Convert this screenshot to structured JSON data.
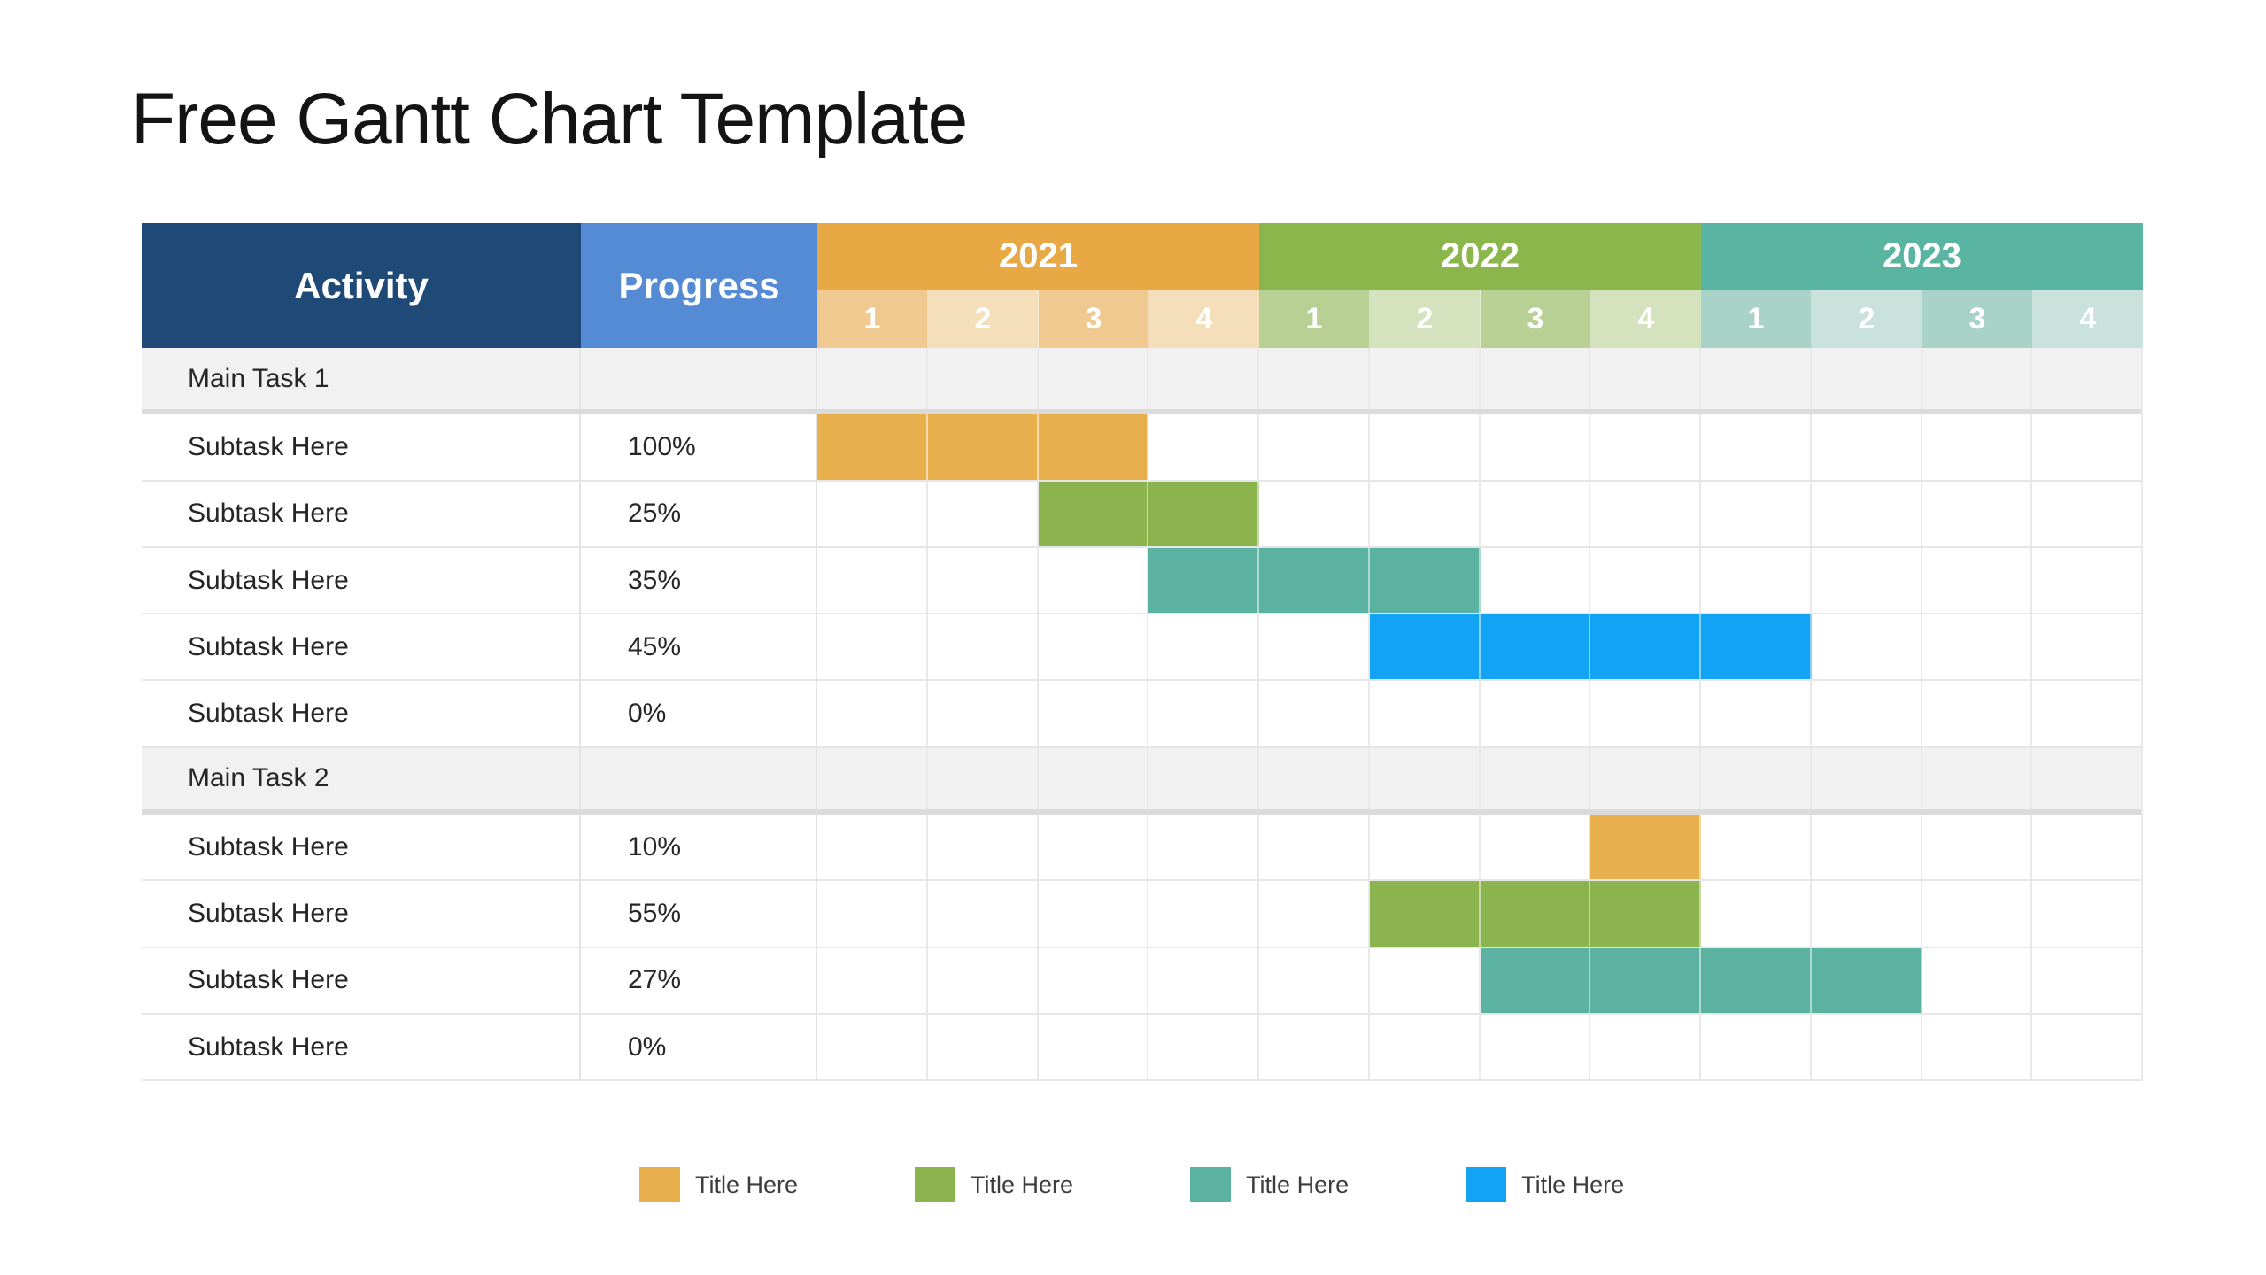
{
  "title": "Free Gantt Chart Template",
  "table": {
    "activity_header": "Activity",
    "progress_header": "Progress",
    "years": [
      {
        "label": "2021",
        "header_color": "#E8A944",
        "tint_strong": "#EFC98F",
        "tint_soft": "#F5DFBA",
        "quarters": [
          "1",
          "2",
          "3",
          "4"
        ]
      },
      {
        "label": "2022",
        "header_color": "#8BB64C",
        "tint_strong": "#B9D094",
        "tint_soft": "#D4E2BE",
        "quarters": [
          "1",
          "2",
          "3",
          "4"
        ]
      },
      {
        "label": "2023",
        "header_color": "#59B5A2",
        "tint_strong": "#A9D3C9",
        "tint_soft": "#CAE2DC",
        "quarters": [
          "1",
          "2",
          "3",
          "4"
        ]
      }
    ]
  },
  "colors": {
    "activity_header_bg": "#1F4A78",
    "progress_header_bg": "#548BD4",
    "main_row_bg": "#F1F1F1",
    "grid_line": "#E6E6E6",
    "thick_separator": "#DBDBDB",
    "body_text": "#262626",
    "bars": {
      "orange": "#E8AF4D",
      "green": "#8CB44E",
      "teal": "#5CB2A0",
      "blue": "#12A3F5"
    }
  },
  "legend": {
    "items": [
      {
        "label": "Title Here",
        "color": "orange"
      },
      {
        "label": "Title Here",
        "color": "green"
      },
      {
        "label": "Title Here",
        "color": "teal"
      },
      {
        "label": "Title Here",
        "color": "blue"
      }
    ]
  },
  "chart_data": {
    "type": "gantt",
    "title": "Free Gantt Chart Template",
    "x_axis": {
      "years": [
        "2021",
        "2022",
        "2023"
      ],
      "quarters_per_year": 4,
      "quarter_labels": [
        "1",
        "2",
        "3",
        "4"
      ]
    },
    "columns": [
      "Activity",
      "Progress"
    ],
    "tasks": [
      {
        "activity": "Main Task 1",
        "is_group": true,
        "progress": "",
        "bar": null
      },
      {
        "activity": "Subtask Here",
        "is_group": false,
        "progress": "100%",
        "bar": {
          "start_index": 0,
          "span": 3,
          "color": "orange",
          "start_quarter": "2021 Q1",
          "end_quarter": "2021 Q3"
        }
      },
      {
        "activity": "Subtask Here",
        "is_group": false,
        "progress": "25%",
        "bar": {
          "start_index": 2,
          "span": 2,
          "color": "green",
          "start_quarter": "2021 Q3",
          "end_quarter": "2021 Q4"
        }
      },
      {
        "activity": "Subtask Here",
        "is_group": false,
        "progress": "35%",
        "bar": {
          "start_index": 3,
          "span": 3,
          "color": "teal",
          "start_quarter": "2021 Q4",
          "end_quarter": "2022 Q2"
        }
      },
      {
        "activity": "Subtask Here",
        "is_group": false,
        "progress": "45%",
        "bar": {
          "start_index": 5,
          "span": 4,
          "color": "blue",
          "start_quarter": "2022 Q2",
          "end_quarter": "2023 Q1"
        }
      },
      {
        "activity": "Subtask Here",
        "is_group": false,
        "progress": "0%",
        "bar": null
      },
      {
        "activity": "Main Task 2",
        "is_group": true,
        "progress": "",
        "bar": null
      },
      {
        "activity": "Subtask Here",
        "is_group": false,
        "progress": "10%",
        "bar": {
          "start_index": 7,
          "span": 1,
          "color": "orange",
          "start_quarter": "2022 Q4",
          "end_quarter": "2022 Q4"
        }
      },
      {
        "activity": "Subtask Here",
        "is_group": false,
        "progress": "55%",
        "bar": {
          "start_index": 5,
          "span": 3,
          "color": "green",
          "start_quarter": "2022 Q2",
          "end_quarter": "2022 Q4"
        }
      },
      {
        "activity": "Subtask Here",
        "is_group": false,
        "progress": "27%",
        "bar": {
          "start_index": 6,
          "span": 4,
          "color": "teal",
          "start_quarter": "2022 Q3",
          "end_quarter": "2023 Q2"
        }
      },
      {
        "activity": "Subtask Here",
        "is_group": false,
        "progress": "0%",
        "bar": null
      }
    ],
    "legend_entries": [
      "Title Here",
      "Title Here",
      "Title Here",
      "Title Here"
    ]
  }
}
